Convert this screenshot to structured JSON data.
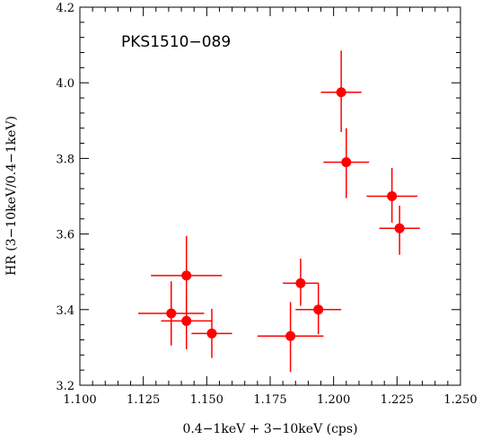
{
  "chart_data": {
    "type": "scatter",
    "title": "PKS1510−089",
    "xlabel": "0.4−1keV + 3−10keV (cps)",
    "ylabel": "HR (3−10keV/0.4−1keV)",
    "xlim": [
      1.1,
      1.25
    ],
    "ylim": [
      3.2,
      4.2
    ],
    "x_ticks": [
      "1.100",
      "1.125",
      "1.150",
      "1.175",
      "1.200",
      "1.225",
      "1.250"
    ],
    "y_ticks": [
      "3.2",
      "3.4",
      "3.6",
      "3.8",
      "4.0",
      "4.2"
    ],
    "grid": false,
    "error_bars": true,
    "series": [
      {
        "color": "#ff0000",
        "points": [
          {
            "x": 1.203,
            "y": 3.975,
            "xerr": 0.008,
            "yerr_low": 0.105,
            "yerr_high": 0.11
          },
          {
            "x": 1.205,
            "y": 3.79,
            "xerr": 0.009,
            "yerr_low": 0.095,
            "yerr_high": 0.09
          },
          {
            "x": 1.223,
            "y": 3.7,
            "xerr": 0.01,
            "yerr_low": 0.07,
            "yerr_high": 0.075
          },
          {
            "x": 1.226,
            "y": 3.615,
            "xerr": 0.008,
            "yerr_low": 0.07,
            "yerr_high": 0.06
          },
          {
            "x": 1.142,
            "y": 3.49,
            "xerr": 0.014,
            "yerr_low": 0.1,
            "yerr_high": 0.105
          },
          {
            "x": 1.136,
            "y": 3.39,
            "xerr": 0.013,
            "yerr_low": 0.085,
            "yerr_high": 0.085
          },
          {
            "x": 1.142,
            "y": 3.37,
            "xerr": 0.01,
            "yerr_low": 0.075,
            "yerr_high": 0.07
          },
          {
            "x": 1.152,
            "y": 3.337,
            "xerr": 0.008,
            "yerr_low": 0.065,
            "yerr_high": 0.065
          },
          {
            "x": 1.187,
            "y": 3.47,
            "xerr": 0.007,
            "yerr_low": 0.06,
            "yerr_high": 0.065
          },
          {
            "x": 1.194,
            "y": 3.4,
            "xerr": 0.009,
            "yerr_low": 0.065,
            "yerr_high": 0.07
          },
          {
            "x": 1.183,
            "y": 3.33,
            "xerr": 0.013,
            "yerr_low": 0.095,
            "yerr_high": 0.09
          }
        ]
      }
    ]
  }
}
